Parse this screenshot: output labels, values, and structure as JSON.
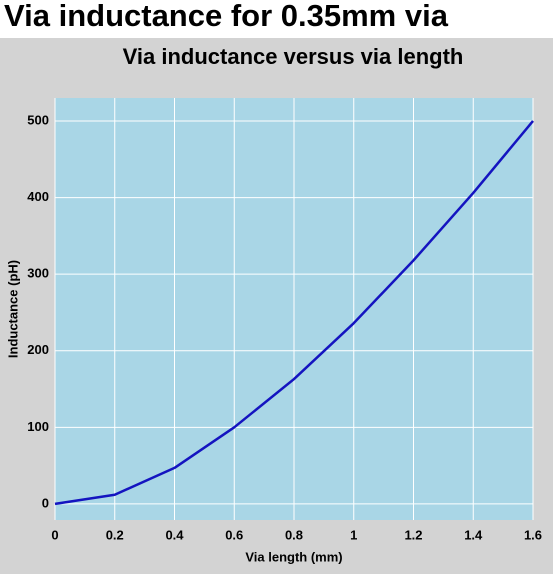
{
  "heading": "Via inductance for 0.35mm via",
  "chart_data": {
    "type": "line",
    "title": "Via inductance versus via length",
    "x_label": "Via length (mm)",
    "y_label": "Inductance (pH)",
    "x": [
      0,
      0.2,
      0.4,
      0.6,
      0.8,
      1,
      1.2,
      1.4,
      1.6
    ],
    "series": [
      {
        "name": "Inductance",
        "color": "#1414c0",
        "values": [
          0,
          12,
          47,
          100,
          163,
          236,
          318,
          406,
          500
        ]
      }
    ],
    "xlim": [
      0,
      1.6
    ],
    "xticks": [
      0,
      0.2,
      0.4,
      0.6,
      0.8,
      1,
      1.2,
      1.4,
      1.6
    ],
    "ylim": [
      -21,
      530
    ],
    "yticks": [
      0,
      100,
      200,
      300,
      400,
      500
    ],
    "grid": true,
    "legend": false
  }
}
